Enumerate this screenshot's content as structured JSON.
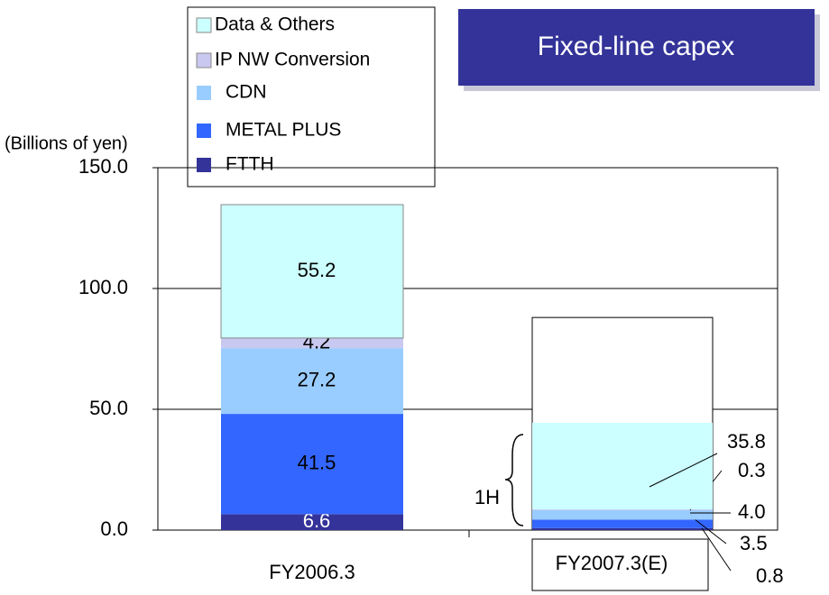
{
  "chart_data": {
    "type": "stacked_bar",
    "title": "Fixed-line capex",
    "y_label": "(Billions of yen)",
    "categories": [
      "FY2006.3",
      "FY2007.3(E)"
    ],
    "series": [
      {
        "name": "FTTH",
        "color": "#333399",
        "values": [
          6.6,
          0.8
        ]
      },
      {
        "name": "METAL PLUS",
        "color": "#3366ff",
        "values": [
          41.5,
          3.5
        ]
      },
      {
        "name": "CDN",
        "color": "#99ccff",
        "values": [
          27.2,
          4.0
        ],
        "value_labels": [
          "27.2",
          "4.0"
        ]
      },
      {
        "name": "IP NW Conversion",
        "color": "#c8c8f0",
        "values": [
          4.2,
          0.3
        ]
      },
      {
        "name": "Data & Others",
        "color": "#ccffff",
        "values": [
          55.2,
          35.8
        ]
      }
    ],
    "outline": [
      null,
      88
    ],
    "annotation": "1H",
    "ylim": [
      0,
      150
    ],
    "yticks": [
      {
        "value": 0,
        "label": "0.0"
      },
      {
        "value": 50,
        "label": "50.0"
      },
      {
        "value": 100,
        "label": "100.0"
      },
      {
        "value": 150,
        "label": "150.0"
      }
    ],
    "grid": true
  }
}
